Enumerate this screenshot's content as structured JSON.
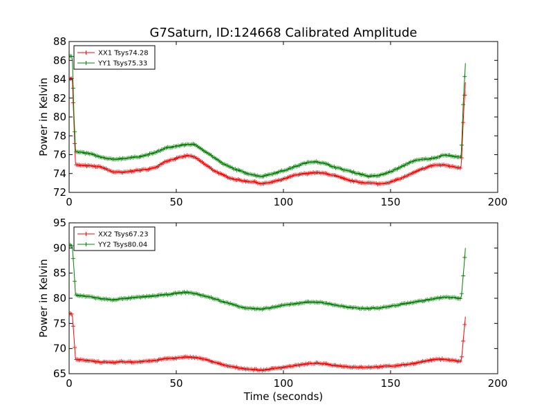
{
  "title": "G7Saturn, ID:124668 Calibrated Amplitude",
  "colors": {
    "red": "#ff0000",
    "green": "#008000",
    "axes": "#000000"
  },
  "chart_data": [
    {
      "type": "line",
      "title": "G7Saturn, ID:124668 Calibrated Amplitude",
      "xlabel": "",
      "ylabel": "Power in Kelvin",
      "xlim": [
        0,
        200
      ],
      "ylim": [
        72,
        88
      ],
      "xticks": [
        "0",
        "50",
        "100",
        "150",
        "200"
      ],
      "yticks": [
        "72",
        "74",
        "76",
        "78",
        "80",
        "82",
        "84",
        "86",
        "88"
      ],
      "grid": false,
      "legend_position": "top-left",
      "series": [
        {
          "name": "XX1 Tsys74.28",
          "color": "#ff0000",
          "x": [
            0.5,
            1.5,
            2.2,
            3,
            10,
            15,
            20,
            25,
            30,
            35,
            40,
            45,
            50,
            55,
            58,
            62,
            67,
            72,
            77,
            82,
            87,
            90,
            95,
            100,
            105,
            110,
            115,
            120,
            125,
            130,
            135,
            140,
            145,
            150,
            155,
            160,
            165,
            170,
            175,
            180,
            183,
            184,
            185
          ],
          "y": [
            84.1,
            84.1,
            79.5,
            74.9,
            74.8,
            74.7,
            74.2,
            74.1,
            74.3,
            74.4,
            74.6,
            75.3,
            75.6,
            75.9,
            75.8,
            75.2,
            74.4,
            73.8,
            73.4,
            73.2,
            73.1,
            72.9,
            73.1,
            73.4,
            73.8,
            74.0,
            74.1,
            74.0,
            73.7,
            73.3,
            73.1,
            73.0,
            72.9,
            73.1,
            73.5,
            74.0,
            74.5,
            74.9,
            74.9,
            74.7,
            74.6,
            80.0,
            83.9
          ]
        },
        {
          "name": "YY1 Tsys75.33",
          "color": "#008000",
          "x": [
            0.5,
            1.5,
            2.2,
            3,
            10,
            15,
            20,
            25,
            30,
            35,
            40,
            45,
            50,
            55,
            58,
            62,
            67,
            72,
            77,
            82,
            87,
            90,
            95,
            100,
            105,
            110,
            115,
            120,
            125,
            130,
            135,
            140,
            145,
            150,
            155,
            160,
            165,
            170,
            175,
            180,
            183,
            184,
            185
          ],
          "y": [
            86.5,
            86.4,
            80.5,
            76.3,
            76.1,
            75.7,
            75.5,
            75.6,
            75.7,
            75.9,
            76.2,
            76.7,
            76.9,
            77.1,
            77.1,
            76.6,
            75.8,
            75.0,
            74.5,
            74.1,
            73.8,
            73.7,
            74.0,
            74.3,
            74.7,
            75.1,
            75.3,
            75.0,
            74.6,
            74.3,
            74.0,
            73.7,
            73.8,
            74.2,
            74.7,
            75.3,
            75.5,
            75.6,
            76.0,
            75.8,
            75.7,
            82.0,
            85.9
          ]
        }
      ]
    },
    {
      "type": "line",
      "title": "",
      "xlabel": "Time (seconds)",
      "ylabel": "Power in Kelvin",
      "xlim": [
        0,
        200
      ],
      "ylim": [
        65,
        95
      ],
      "xticks": [
        "0",
        "50",
        "100",
        "150",
        "200"
      ],
      "yticks": [
        "65",
        "70",
        "75",
        "80",
        "85",
        "90",
        "95"
      ],
      "grid": false,
      "legend_position": "top-left",
      "series": [
        {
          "name": "XX2 Tsys67.23",
          "color": "#ff0000",
          "x": [
            0.5,
            1.5,
            2.2,
            3,
            10,
            15,
            20,
            25,
            30,
            35,
            40,
            45,
            50,
            55,
            58,
            62,
            67,
            72,
            77,
            82,
            87,
            90,
            95,
            100,
            105,
            110,
            115,
            120,
            125,
            130,
            135,
            140,
            145,
            150,
            155,
            160,
            165,
            170,
            175,
            180,
            183,
            184,
            185
          ],
          "y": [
            77.0,
            76.8,
            72.5,
            67.8,
            67.6,
            67.3,
            67.2,
            67.4,
            67.3,
            67.5,
            67.6,
            68.0,
            68.1,
            68.3,
            68.3,
            68.0,
            67.4,
            66.7,
            66.3,
            66.0,
            65.8,
            65.7,
            66.0,
            66.3,
            66.6,
            66.9,
            67.1,
            66.9,
            66.6,
            66.4,
            66.3,
            66.3,
            66.4,
            66.5,
            66.7,
            67.0,
            67.4,
            67.8,
            67.9,
            67.6,
            67.4,
            72.0,
            76.6
          ]
        },
        {
          "name": "YY2 Tsys80.04",
          "color": "#008000",
          "x": [
            0.5,
            1.5,
            2.2,
            3,
            10,
            15,
            20,
            25,
            30,
            35,
            40,
            45,
            50,
            55,
            58,
            62,
            67,
            72,
            77,
            82,
            87,
            90,
            95,
            100,
            105,
            110,
            115,
            120,
            125,
            130,
            135,
            140,
            145,
            150,
            155,
            160,
            165,
            170,
            175,
            180,
            183,
            184,
            185
          ],
          "y": [
            90.6,
            90.4,
            86.0,
            80.6,
            80.3,
            79.9,
            79.7,
            79.9,
            80.1,
            80.3,
            80.5,
            80.7,
            81.0,
            81.2,
            81.0,
            80.6,
            80.0,
            79.3,
            78.7,
            78.1,
            77.9,
            77.8,
            78.2,
            78.6,
            78.9,
            79.2,
            79.3,
            79.0,
            78.6,
            78.2,
            78.0,
            78.0,
            78.1,
            78.4,
            78.8,
            79.2,
            79.5,
            79.9,
            80.2,
            80.1,
            80.0,
            85.0,
            90.2
          ]
        }
      ]
    }
  ]
}
